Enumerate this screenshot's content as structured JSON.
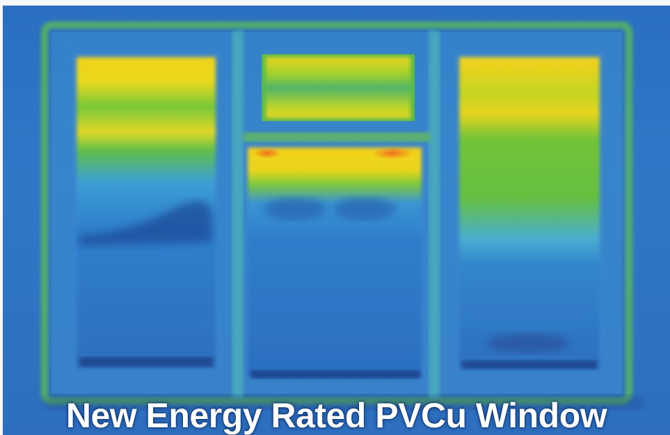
{
  "image": {
    "caption": "New Energy Rated PVCu Window",
    "colors": {
      "cold_blue": "#2d6fc0",
      "cool_cyan": "#3fa6d8",
      "warm_green": "#5fc43a",
      "hot_yellow": "#f2d21a",
      "peak_orange": "#f0641e",
      "shadow_navy": "#1b3f86"
    }
  }
}
